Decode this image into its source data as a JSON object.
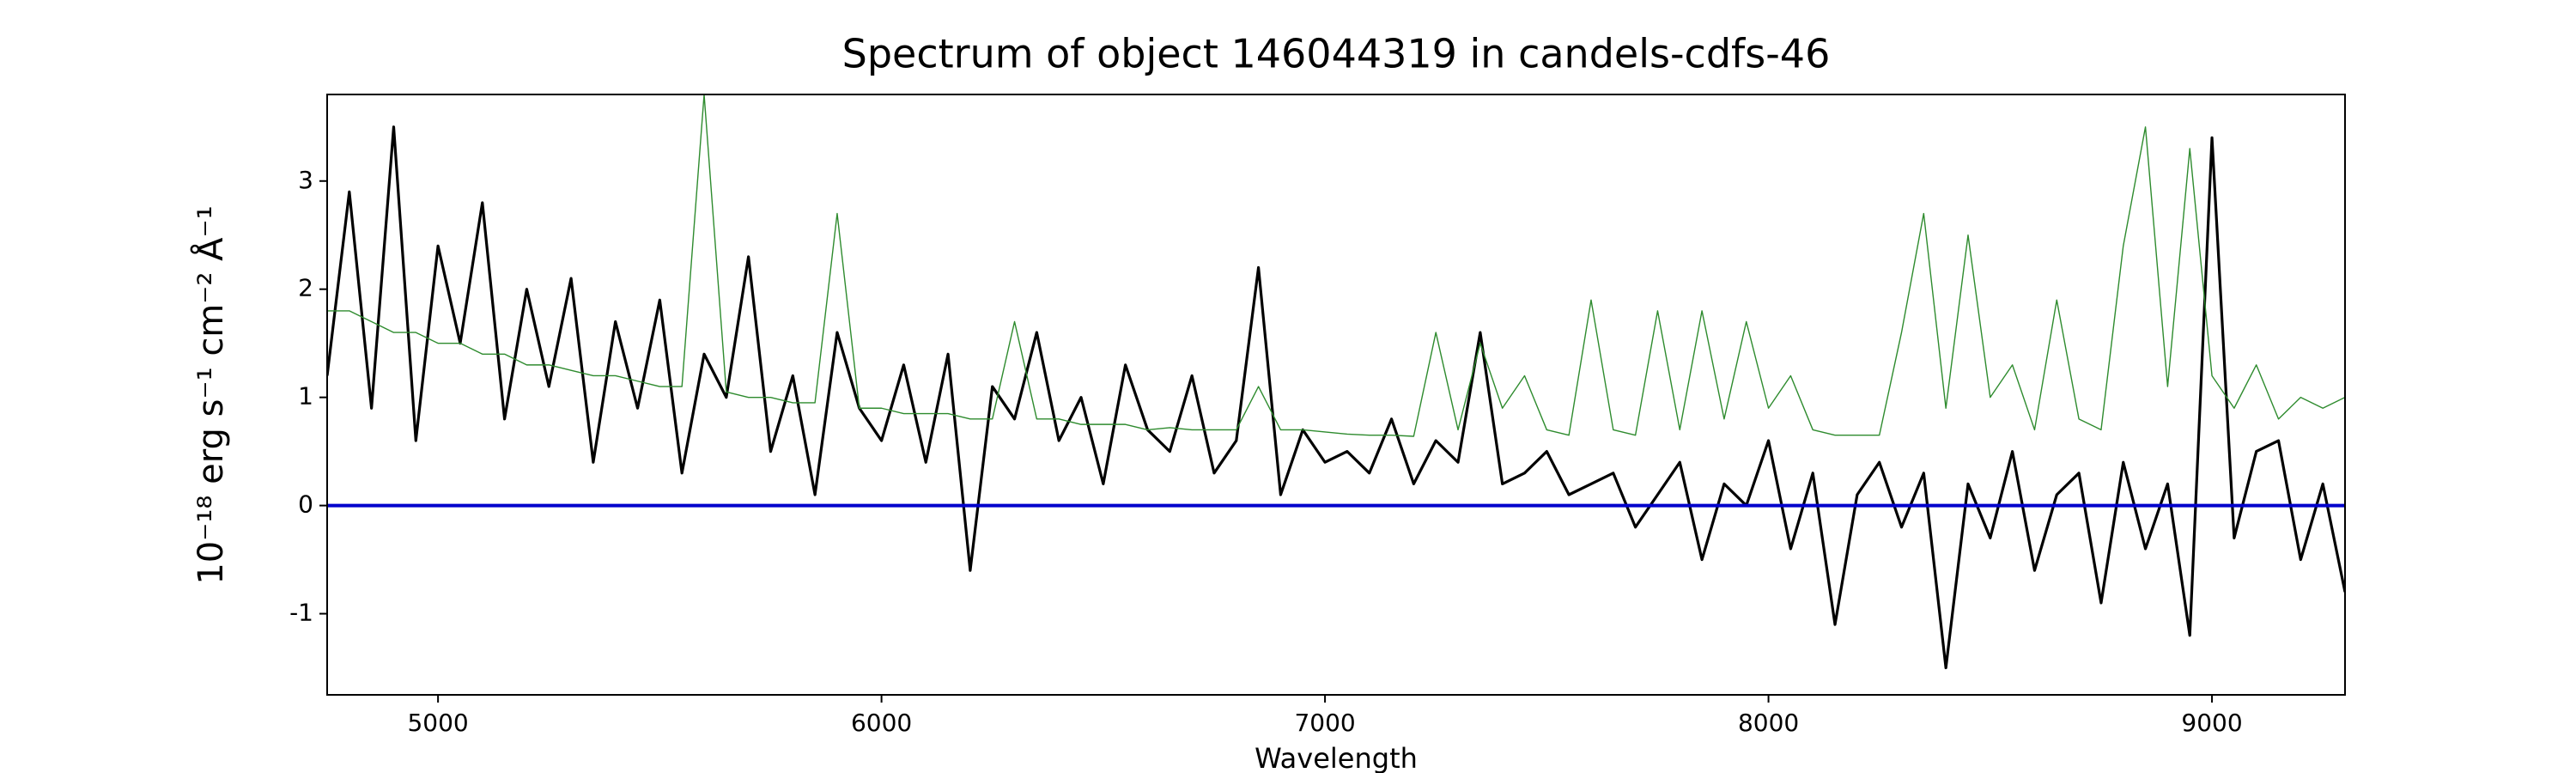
{
  "chart_data": {
    "type": "line",
    "title": "Spectrum of object 146044319 in candels-cdfs-46",
    "xlabel": "Wavelength",
    "ylabel": "10⁻¹⁸ erg s⁻¹ cm⁻² Å⁻¹",
    "xlim": [
      4750,
      9300
    ],
    "ylim": [
      -1.75,
      3.8
    ],
    "xticks": [
      5000,
      6000,
      7000,
      8000,
      9000
    ],
    "yticks": [
      -1,
      0,
      1,
      2,
      3
    ],
    "x": [
      4750,
      4800,
      4850,
      4900,
      4950,
      5000,
      5050,
      5100,
      5150,
      5200,
      5250,
      5300,
      5350,
      5400,
      5450,
      5500,
      5550,
      5600,
      5650,
      5700,
      5750,
      5800,
      5850,
      5900,
      5950,
      6000,
      6050,
      6100,
      6150,
      6200,
      6250,
      6300,
      6350,
      6400,
      6450,
      6500,
      6550,
      6600,
      6650,
      6700,
      6750,
      6800,
      6850,
      6900,
      6950,
      7000,
      7050,
      7100,
      7150,
      7200,
      7250,
      7300,
      7350,
      7400,
      7450,
      7500,
      7550,
      7600,
      7650,
      7700,
      7750,
      7800,
      7850,
      7900,
      7950,
      8000,
      8050,
      8100,
      8150,
      8200,
      8250,
      8300,
      8350,
      8400,
      8450,
      8500,
      8550,
      8600,
      8650,
      8700,
      8750,
      8800,
      8850,
      8900,
      8950,
      9000,
      9050,
      9100,
      9150,
      9200,
      9250,
      9300
    ],
    "series": [
      {
        "color": "#000000",
        "linewidth": 3.2,
        "values": [
          1.2,
          2.9,
          0.9,
          3.5,
          0.6,
          2.4,
          1.5,
          2.8,
          0.8,
          2.0,
          1.1,
          2.1,
          0.4,
          1.7,
          0.9,
          1.9,
          0.3,
          1.4,
          1.0,
          2.3,
          0.5,
          1.2,
          0.1,
          1.6,
          0.9,
          0.6,
          1.3,
          0.4,
          1.4,
          -0.6,
          1.1,
          0.8,
          1.6,
          0.6,
          1.0,
          0.2,
          1.3,
          0.7,
          0.5,
          1.2,
          0.3,
          0.6,
          2.2,
          0.1,
          0.7,
          0.4,
          0.5,
          0.3,
          0.8,
          0.2,
          0.6,
          0.4,
          1.6,
          0.2,
          0.3,
          0.5,
          0.1,
          0.2,
          0.3,
          -0.2,
          0.1,
          0.4,
          -0.5,
          0.2,
          0.0,
          0.6,
          -0.4,
          0.3,
          -1.1,
          0.1,
          0.4,
          -0.2,
          0.3,
          -1.5,
          0.2,
          -0.3,
          0.5,
          -0.6,
          0.1,
          0.3,
          -0.9,
          0.4,
          -0.4,
          0.2,
          -1.2,
          3.4,
          -0.3,
          0.5,
          0.6,
          -0.5,
          0.2,
          -0.8
        ]
      },
      {
        "color": "#2e8b2e",
        "linewidth": 1.4,
        "values": [
          1.8,
          1.8,
          1.7,
          1.6,
          1.6,
          1.5,
          1.5,
          1.4,
          1.4,
          1.3,
          1.3,
          1.25,
          1.2,
          1.2,
          1.15,
          1.1,
          1.1,
          3.8,
          1.05,
          1.0,
          1.0,
          0.95,
          0.95,
          2.7,
          0.9,
          0.9,
          0.85,
          0.85,
          0.85,
          0.8,
          0.8,
          1.7,
          0.8,
          0.8,
          0.75,
          0.75,
          0.75,
          0.7,
          0.72,
          0.7,
          0.7,
          0.7,
          1.1,
          0.7,
          0.7,
          0.68,
          0.66,
          0.65,
          0.65,
          0.64,
          1.6,
          0.7,
          1.5,
          0.9,
          1.2,
          0.7,
          0.65,
          1.9,
          0.7,
          0.65,
          1.8,
          0.7,
          1.8,
          0.8,
          1.7,
          0.9,
          1.2,
          0.7,
          0.65,
          0.65,
          0.65,
          1.6,
          2.7,
          0.9,
          2.5,
          1.0,
          1.3,
          0.7,
          1.9,
          0.8,
          0.7,
          2.4,
          3.5,
          1.1,
          3.3,
          1.2,
          0.9,
          1.3,
          0.8,
          1.0,
          0.9,
          1.0
        ]
      },
      {
        "color": "#0000cc",
        "linewidth": 4,
        "values": [
          0,
          0,
          0,
          0,
          0,
          0,
          0,
          0,
          0,
          0,
          0,
          0,
          0,
          0,
          0,
          0,
          0,
          0,
          0,
          0,
          0,
          0,
          0,
          0,
          0,
          0,
          0,
          0,
          0,
          0,
          0,
          0,
          0,
          0,
          0,
          0,
          0,
          0,
          0,
          0,
          0,
          0,
          0,
          0,
          0,
          0,
          0,
          0,
          0,
          0,
          0,
          0,
          0,
          0,
          0,
          0,
          0,
          0,
          0,
          0,
          0,
          0,
          0,
          0,
          0,
          0,
          0,
          0,
          0,
          0,
          0,
          0,
          0,
          0,
          0,
          0,
          0,
          0,
          0,
          0,
          0,
          0,
          0,
          0,
          0,
          0,
          0,
          0,
          0,
          0,
          0,
          0
        ]
      }
    ]
  }
}
